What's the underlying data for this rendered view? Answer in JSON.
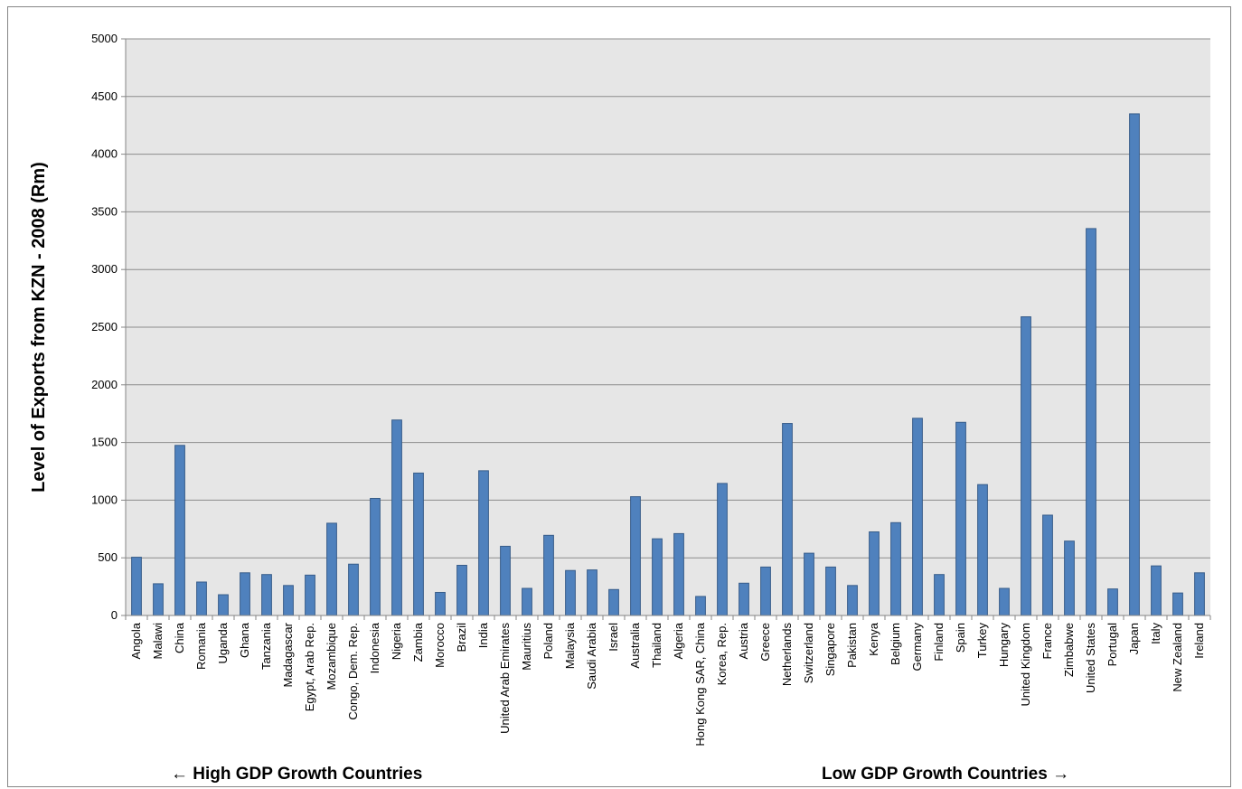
{
  "chart_data": {
    "type": "bar",
    "title": "",
    "xlabel": "",
    "ylabel": "Level of Exports from KZN - 2008 (Rm)",
    "ylim": [
      0,
      5000
    ],
    "yticks": [
      0,
      500,
      1000,
      1500,
      2000,
      2500,
      3000,
      3500,
      4000,
      4500,
      5000
    ],
    "grid": true,
    "legend": "none",
    "colors": {
      "bar_fill": "#4f81bd",
      "bar_stroke": "#385d8a",
      "plot_bg": "#e6e6e6",
      "grid": "#8c8c8c"
    },
    "categories": [
      "Angola",
      "Malawi",
      "China",
      "Romania",
      "Uganda",
      "Ghana",
      "Tanzania",
      "Madagascar",
      "Egypt, Arab Rep.",
      "Mozambique",
      "Congo, Dem. Rep.",
      "Indonesia",
      "Nigeria",
      "Zambia",
      "Morocco",
      "Brazil",
      "India",
      "United Arab Emirates",
      "Mauritius",
      "Poland",
      "Malaysia",
      "Saudi Arabia",
      "Israel",
      "Australia",
      "Thailand",
      "Algeria",
      "Hong Kong SAR, China",
      "Korea, Rep.",
      "Austria",
      "Greece",
      "Netherlands",
      "Switzerland",
      "Singapore",
      "Pakistan",
      "Kenya",
      "Belgium",
      "Germany",
      "Finland",
      "Spain",
      "Turkey",
      "Hungary",
      "United Kingdom",
      "France",
      "Zimbabwe",
      "United States",
      "Portugal",
      "Japan",
      "Italy",
      "New Zealand",
      "Ireland"
    ],
    "values": [
      505,
      275,
      1475,
      290,
      180,
      370,
      355,
      260,
      350,
      800,
      445,
      1015,
      1695,
      1235,
      200,
      435,
      1255,
      600,
      235,
      695,
      390,
      395,
      225,
      1030,
      665,
      710,
      165,
      1145,
      280,
      420,
      1665,
      540,
      420,
      260,
      725,
      805,
      1710,
      355,
      1675,
      1135,
      235,
      2590,
      870,
      645,
      3355,
      230,
      4350,
      430,
      195,
      370
    ],
    "annotations": {
      "left": "← High GDP Growth Countries",
      "right": "Low GDP Growth Countries →"
    }
  }
}
